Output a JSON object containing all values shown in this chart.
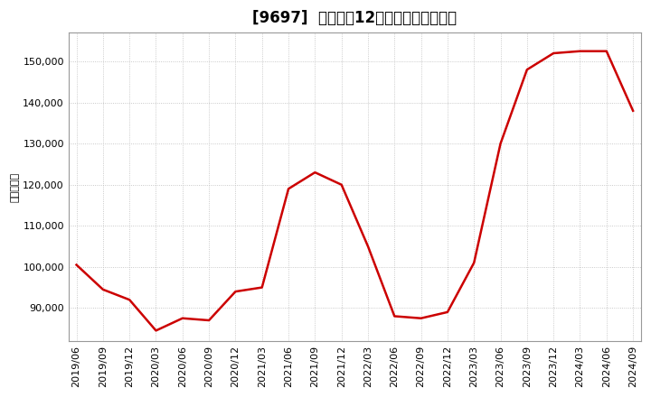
{
  "title": "[9697]  売上高の12か月移動合計の推移",
  "ylabel": "（百万円）",
  "line_color": "#cc0000",
  "background_color": "#ffffff",
  "grid_color": "#bbbbbb",
  "dates": [
    "2019/06",
    "2019/09",
    "2019/12",
    "2020/03",
    "2020/06",
    "2020/09",
    "2020/12",
    "2021/03",
    "2021/06",
    "2021/09",
    "2021/12",
    "2022/03",
    "2022/06",
    "2022/09",
    "2022/12",
    "2023/03",
    "2023/06",
    "2023/09",
    "2023/12",
    "2024/03",
    "2024/06",
    "2024/09"
  ],
  "values": [
    100500,
    94500,
    92000,
    84500,
    87500,
    87000,
    94000,
    95000,
    119000,
    123000,
    120000,
    105000,
    88000,
    87500,
    89000,
    101000,
    130000,
    148000,
    152000,
    152500,
    152500,
    138000
  ],
  "ylim": [
    82000,
    157000
  ],
  "yticks": [
    90000,
    100000,
    110000,
    120000,
    130000,
    140000,
    150000
  ],
  "title_fontsize": 12,
  "axis_fontsize": 8,
  "ylabel_fontsize": 8,
  "linewidth": 1.8
}
